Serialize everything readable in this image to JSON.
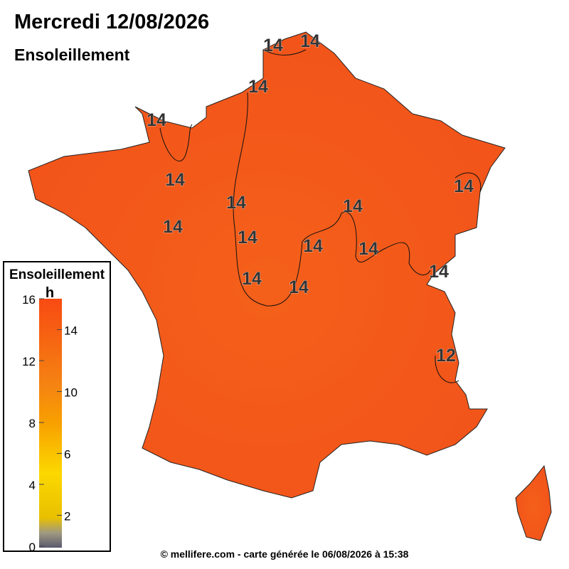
{
  "header": {
    "title": "Mercredi 12/08/2026",
    "subtitle": "Ensoleillement"
  },
  "legend": {
    "title": "Ensoleillement",
    "unit": "h",
    "min": 0,
    "max": 16,
    "ticks_left": [
      0,
      4,
      8,
      12,
      16
    ],
    "ticks_right": [
      2,
      6,
      10,
      14
    ]
  },
  "contour_labels": [
    "14",
    "14",
    "14",
    "14",
    "14",
    "14",
    "14",
    "14",
    "14",
    "14",
    "14",
    "14",
    "14",
    "14",
    "14",
    "12"
  ],
  "footer": "© mellifere.com - carte générée le 06/08/2026 à 15:38"
}
